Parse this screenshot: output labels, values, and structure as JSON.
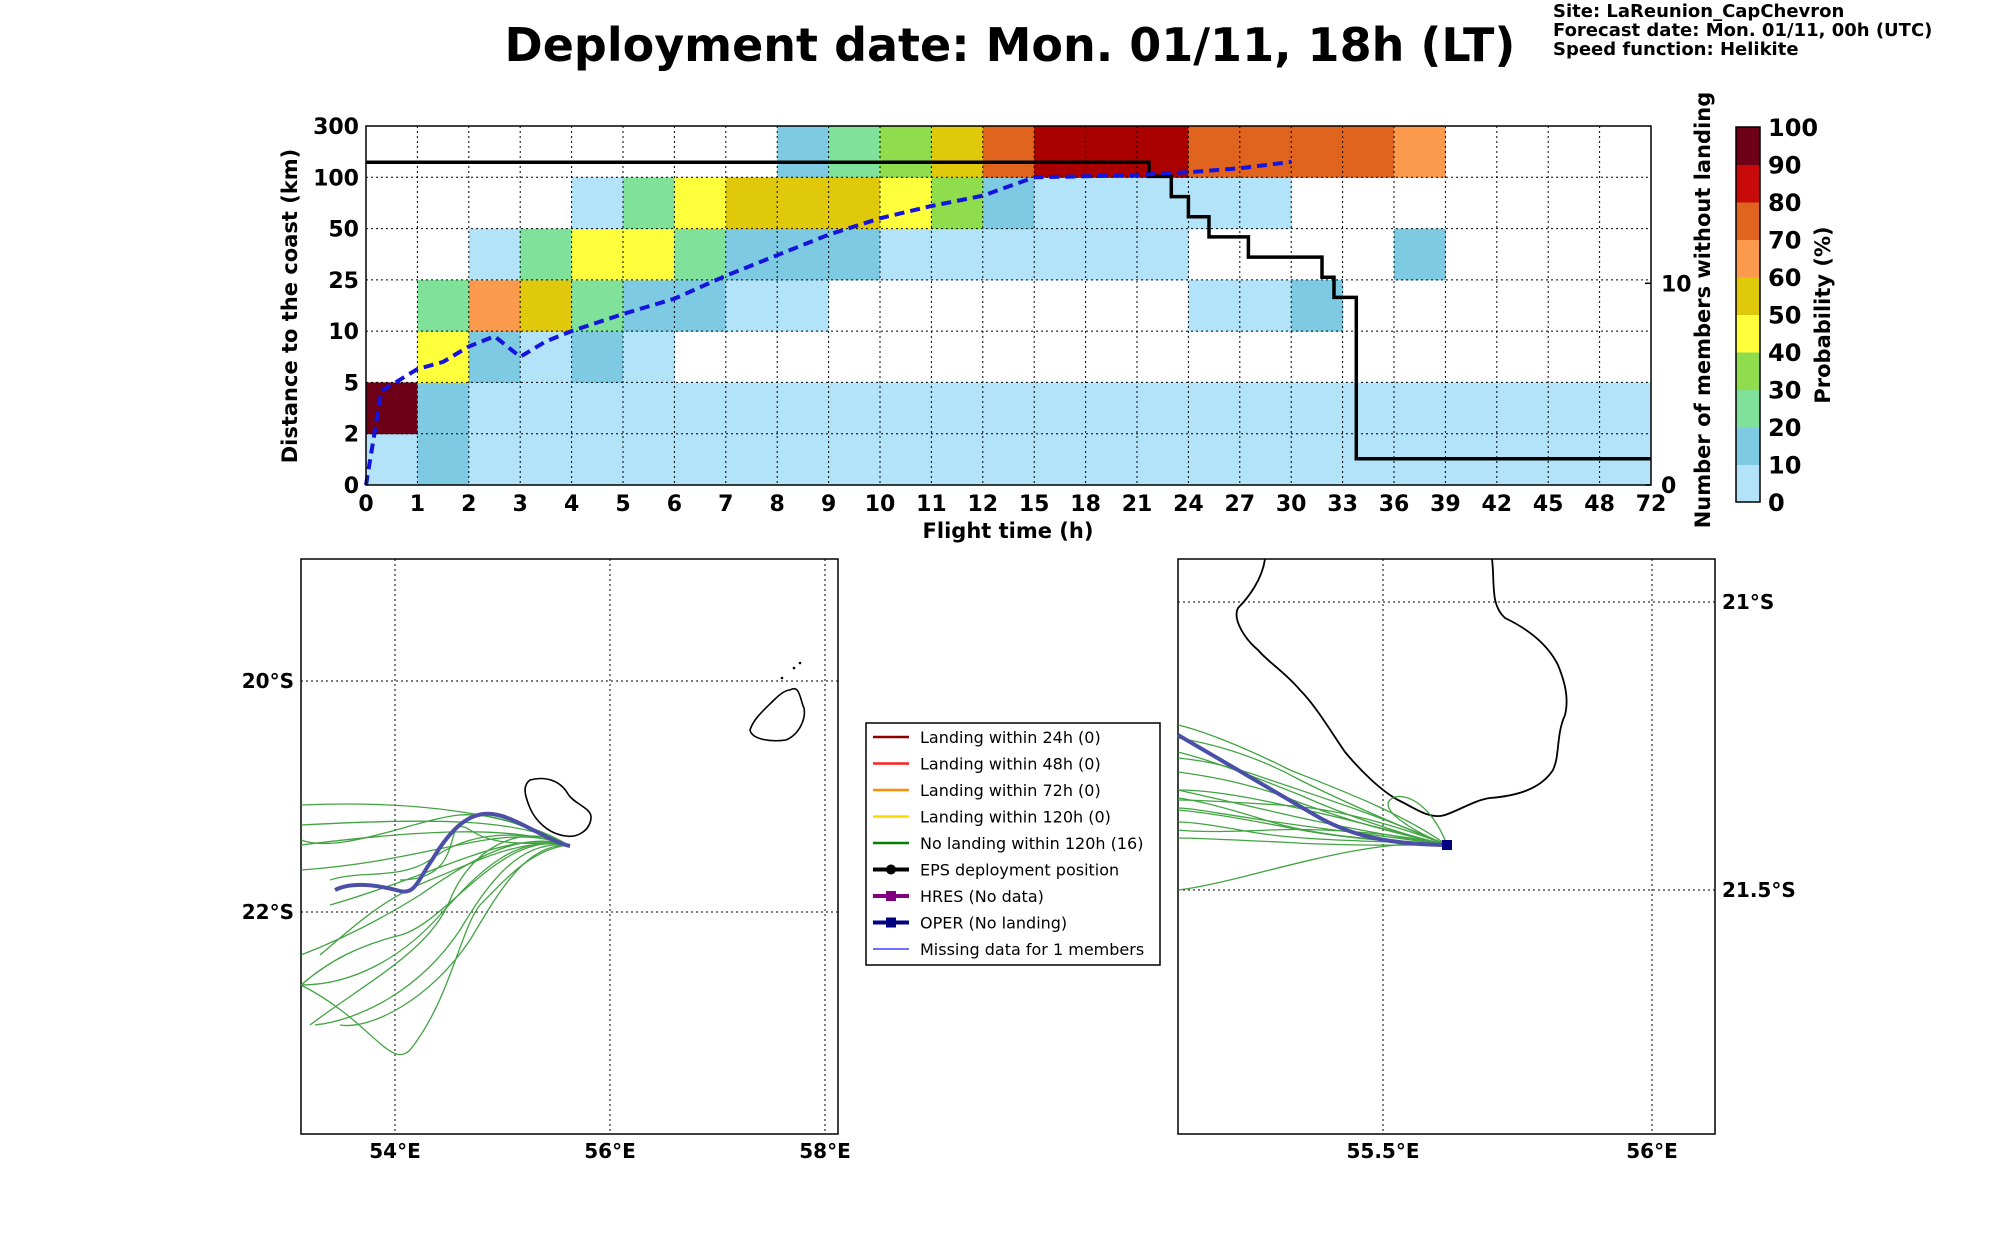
{
  "title": "Deployment date: Mon. 01/11, 18h (LT)",
  "info": {
    "site": "Site: LaReunion_CapChevron",
    "forecast": "Forecast date: Mon. 01/11, 00h (UTC)",
    "speed": "Speed function: Helikite"
  },
  "chart_data": [
    {
      "type": "heatmap",
      "xlabel": "Flight time (h)",
      "ylabel": "Distance to the coast (km)",
      "y2label": "Number of members without landing",
      "x_ticks": [
        "0",
        "1",
        "2",
        "3",
        "4",
        "5",
        "6",
        "7",
        "8",
        "9",
        "10",
        "11",
        "12",
        "15",
        "18",
        "21",
        "24",
        "27",
        "30",
        "33",
        "36",
        "39",
        "42",
        "45",
        "48",
        "72"
      ],
      "y_ticks": [
        "0",
        "2",
        "5",
        "10",
        "25",
        "50",
        "100",
        "300"
      ],
      "y2_ticks": [
        "0",
        "10"
      ],
      "colorbar": {
        "label": "Probability (%)",
        "ticks": [
          "0",
          "10",
          "20",
          "30",
          "40",
          "50",
          "60",
          "70",
          "80",
          "90",
          "100"
        ],
        "colors": [
          "#b3e3f8",
          "#7ecae3",
          "#7fe19a",
          "#8fdc4c",
          "#ffff3c",
          "#e0c80a",
          "#fb9a4c",
          "#e0641e",
          "#c80a0a",
          "#aa0000",
          "#6e0018"
        ]
      },
      "cell_probability_bins": [
        [
          0,
          10,
          0,
          0,
          0,
          0,
          0,
          0,
          0,
          0,
          0,
          0,
          0,
          0,
          0,
          0,
          0,
          0,
          0,
          0,
          0,
          0,
          0,
          0,
          0
        ],
        [
          100,
          10,
          0,
          0,
          0,
          0,
          0,
          0,
          0,
          0,
          0,
          0,
          0,
          0,
          0,
          0,
          0,
          0,
          0,
          0,
          0,
          0,
          0,
          0,
          0
        ],
        [
          null,
          40,
          10,
          0,
          10,
          0,
          null,
          null,
          null,
          null,
          null,
          null,
          null,
          null,
          null,
          null,
          null,
          null,
          null,
          null,
          null,
          null,
          null,
          null,
          null
        ],
        [
          null,
          20,
          60,
          50,
          20,
          10,
          10,
          0,
          0,
          null,
          null,
          null,
          null,
          null,
          null,
          null,
          0,
          0,
          10,
          null,
          null,
          null,
          null,
          null,
          null
        ],
        [
          null,
          null,
          0,
          20,
          40,
          40,
          20,
          10,
          10,
          10,
          0,
          0,
          0,
          0,
          0,
          0,
          null,
          null,
          null,
          null,
          10,
          null,
          null,
          null,
          null
        ],
        [
          null,
          null,
          null,
          null,
          0,
          20,
          40,
          50,
          50,
          50,
          40,
          30,
          10,
          0,
          0,
          0,
          0,
          0,
          null,
          null,
          null,
          null,
          null,
          null,
          null
        ],
        [
          null,
          null,
          null,
          null,
          null,
          null,
          null,
          null,
          10,
          20,
          30,
          50,
          70,
          90,
          90,
          90,
          70,
          70,
          70,
          70,
          60,
          null,
          null,
          null,
          null
        ]
      ],
      "series": [
        {
          "name": "Number of members without landing",
          "x": [
            0,
            21.7,
            21.7,
            23,
            23,
            24,
            24,
            25.2,
            25.2,
            27.5,
            27.5,
            31.8,
            31.8,
            32.5,
            32.5,
            33.8,
            33.8,
            72
          ],
          "y": [
            16,
            16,
            15.3,
            15.3,
            14.3,
            14.3,
            13.3,
            13.3,
            12.3,
            12.3,
            11.3,
            11.3,
            10.3,
            10.3,
            9.3,
            9.3,
            1.3,
            1.3
          ]
        },
        {
          "name": "Mean distance",
          "x": [
            0,
            0.3,
            1,
            1.5,
            2,
            2.5,
            3,
            3.5,
            4,
            5,
            6,
            7,
            8,
            9,
            10,
            11,
            12,
            15,
            18,
            21,
            24,
            27,
            30
          ],
          "y": [
            0,
            4.5,
            6.3,
            7,
            8.5,
            9.5,
            7.5,
            9,
            10,
            15,
            19.5,
            27,
            37,
            47,
            60,
            72,
            82,
            100,
            104,
            109,
            120,
            135,
            160
          ]
        }
      ]
    },
    {
      "type": "map",
      "lon_labels": [
        "54°E",
        "56°E",
        "58°E"
      ],
      "lat_labels": [
        "20°S",
        "22°S"
      ]
    },
    {
      "type": "map",
      "lon_labels": [
        "55.5°E",
        "56°E"
      ],
      "lat_labels": [
        "21°S",
        "21.5°S"
      ]
    }
  ],
  "legend": [
    {
      "label": "Landing within 24h (0)",
      "color": "#8b0000",
      "kind": "line"
    },
    {
      "label": "Landing within 48h (0)",
      "color": "#ff2020",
      "kind": "line"
    },
    {
      "label": "Landing within 72h (0)",
      "color": "#ff8c00",
      "kind": "line"
    },
    {
      "label": "Landing within 120h (0)",
      "color": "#ffd700",
      "kind": "line"
    },
    {
      "label": "No landing within 120h (16)",
      "color": "#008000",
      "kind": "line"
    },
    {
      "label": "EPS deployment position",
      "color": "#000000",
      "kind": "circle"
    },
    {
      "label": "HRES (No data)",
      "color": "#800080",
      "kind": "square"
    },
    {
      "label": "OPER (No landing)",
      "color": "#000080",
      "kind": "square"
    },
    {
      "label": "Missing data for 1 members",
      "color": "#4040ff",
      "kind": "thin"
    }
  ]
}
